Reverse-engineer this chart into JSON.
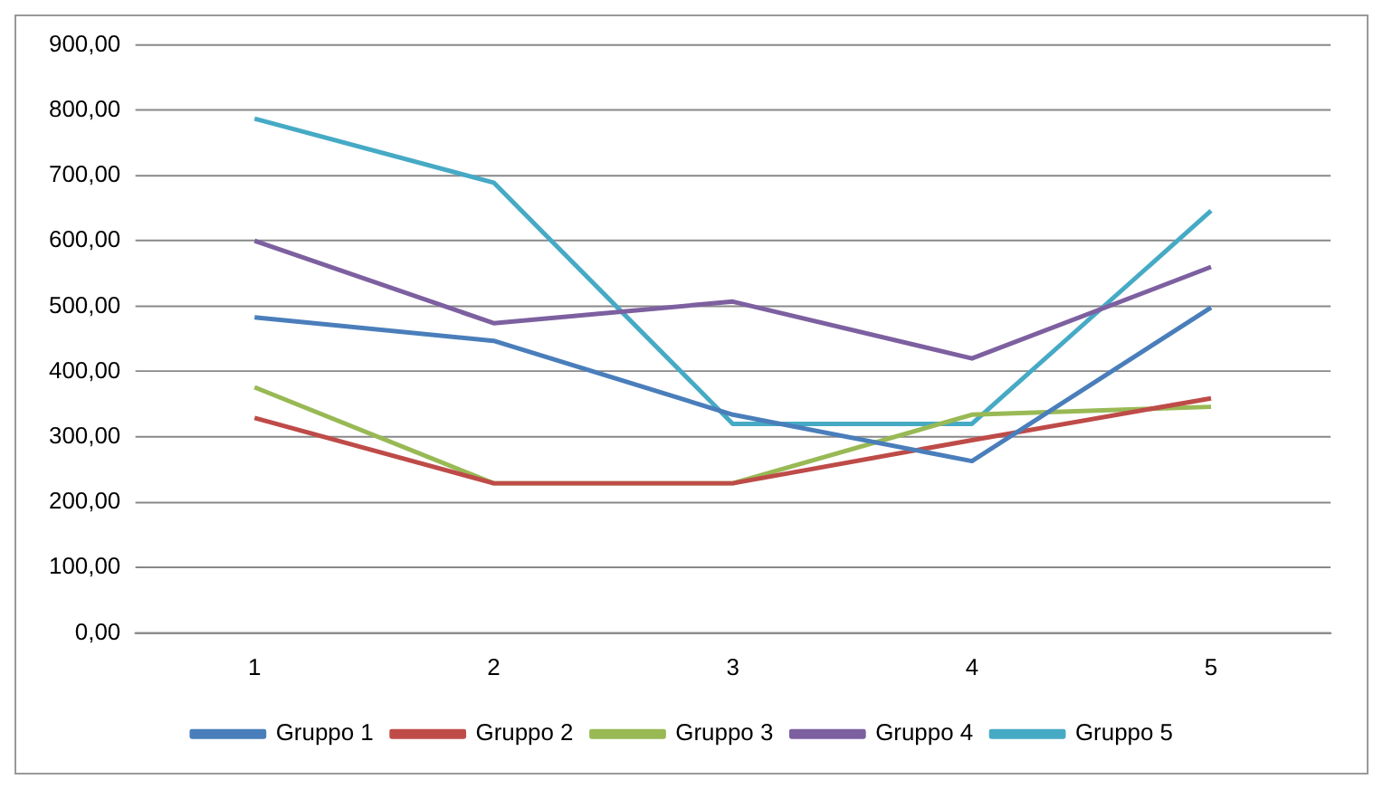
{
  "chart_data": {
    "type": "line",
    "categories": [
      "1",
      "2",
      "3",
      "4",
      "5"
    ],
    "series": [
      {
        "name": "Gruppo 1",
        "color": "#4a7ebb",
        "values": [
          483,
          447,
          334,
          263,
          498
        ]
      },
      {
        "name": "Gruppo 2",
        "color": "#be4b48",
        "values": [
          329,
          229,
          229,
          295,
          359
        ]
      },
      {
        "name": "Gruppo 3",
        "color": "#98b954",
        "values": [
          376,
          229,
          229,
          334,
          346
        ]
      },
      {
        "name": "Gruppo 4",
        "color": "#7d60a0",
        "values": [
          600,
          474,
          507,
          420,
          560
        ]
      },
      {
        "name": "Gruppo 5",
        "color": "#46aac5",
        "values": [
          787,
          689,
          320,
          320,
          646
        ]
      }
    ],
    "ylim": [
      0,
      900
    ],
    "yticks": [
      {
        "value": 0,
        "label": "0,00"
      },
      {
        "value": 100,
        "label": "100,00"
      },
      {
        "value": 200,
        "label": "200,00"
      },
      {
        "value": 300,
        "label": "300,00"
      },
      {
        "value": 400,
        "label": "400,00"
      },
      {
        "value": 500,
        "label": "500,00"
      },
      {
        "value": 600,
        "label": "600,00"
      },
      {
        "value": 700,
        "label": "700,00"
      },
      {
        "value": 800,
        "label": "800,00"
      },
      {
        "value": 900,
        "label": "900,00"
      }
    ],
    "grid": "y",
    "legend": "bottom",
    "marker": "none",
    "line_style": "solid"
  }
}
